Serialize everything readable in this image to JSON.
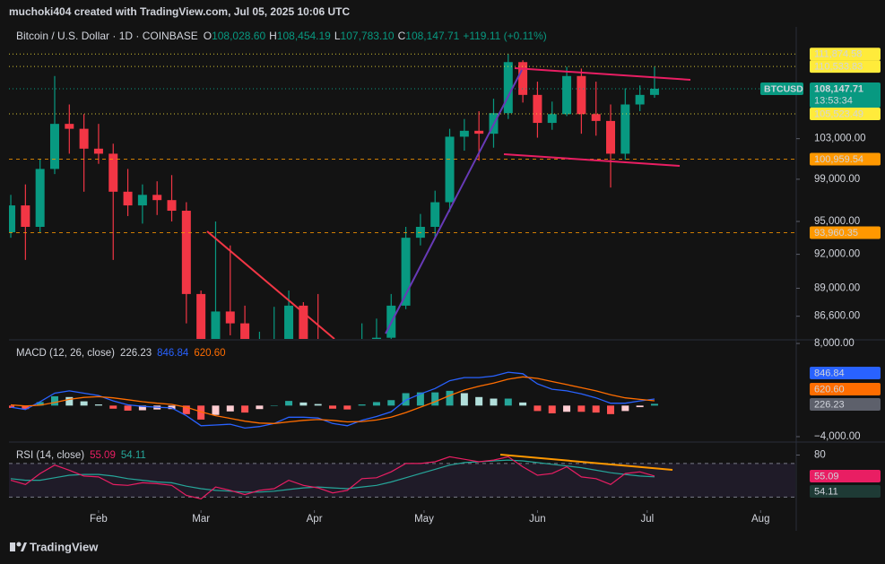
{
  "header": {
    "credit": "muchoki404 created with TradingView.com, Jul 05, 2025 10:06 UTC",
    "symbol": "Bitcoin / U.S. Dollar · 1D · COINBASE",
    "ohlc": [
      [
        "O",
        "108,028.60"
      ],
      [
        "H",
        "108,454.19"
      ],
      [
        "L",
        "107,783.10"
      ],
      [
        "C",
        "108,147.71"
      ]
    ],
    "change": "+119.11 (+0.11%)"
  },
  "chart_data": [
    {
      "type": "candlestick",
      "x": [
        7,
        11,
        15,
        19,
        23,
        27,
        31,
        35,
        39,
        43,
        47,
        51,
        55,
        59,
        63,
        67,
        71,
        75,
        79,
        83,
        87,
        91,
        95,
        99,
        103,
        107,
        111,
        115,
        119,
        123,
        127,
        131,
        135,
        139,
        143,
        147,
        151,
        155,
        159,
        163,
        167,
        171,
        175,
        179,
        183
      ],
      "open": [
        94000,
        96500,
        94500,
        100000,
        104500,
        104000,
        102000,
        101500,
        97800,
        96500,
        97500,
        97000,
        96000,
        88500,
        84500,
        87000,
        86000,
        83500,
        84000,
        84200,
        87500,
        84300,
        83000,
        78500,
        79500,
        84500,
        84800,
        87500,
        93500,
        94500,
        96800,
        103200,
        103800,
        103500,
        105600,
        111000,
        107500,
        104600,
        105500,
        109500,
        105500,
        104800,
        101500,
        106500,
        107500
      ],
      "high": [
        97500,
        98500,
        101000,
        109500,
        106500,
        105500,
        104500,
        102500,
        100000,
        98500,
        98800,
        99400,
        96800,
        88800,
        95000,
        92800,
        87500,
        85300,
        87400,
        88800,
        87800,
        88500,
        84700,
        83500,
        86000,
        86400,
        88500,
        94500,
        95700,
        97900,
        104000,
        105000,
        105800,
        107100,
        111874,
        111200,
        108900,
        106800,
        110500,
        110300,
        108900,
        106500,
        108200,
        108500,
        110500
      ],
      "low": [
        93500,
        91500,
        94000,
        99500,
        101500,
        97800,
        100500,
        91500,
        95500,
        94800,
        95600,
        95000,
        86000,
        78200,
        82000,
        85000,
        76700,
        81000,
        82000,
        83700,
        81700,
        82000,
        77000,
        74500,
        79000,
        83100,
        84000,
        87200,
        92800,
        93500,
        95900,
        101800,
        100800,
        102100,
        105000,
        106700,
        103100,
        103900,
        105300,
        103500,
        103300,
        98200,
        100900,
        105800,
        107200
      ],
      "close": [
        96500,
        94500,
        100000,
        104500,
        104000,
        102000,
        101500,
        97800,
        96500,
        97500,
        97000,
        96000,
        88500,
        84500,
        87000,
        86000,
        83500,
        84000,
        84200,
        87500,
        84300,
        83000,
        78500,
        79500,
        84500,
        84800,
        87500,
        93500,
        94500,
        96800,
        103200,
        103800,
        103500,
        105600,
        111000,
        107500,
        104600,
        105500,
        109500,
        105500,
        104800,
        101500,
        106500,
        107500,
        108150
      ],
      "up_color": "#089981",
      "down_color": "#f23645",
      "log": true,
      "ylim": [
        84700,
        112100
      ],
      "yticks": [
        {
          "value": 103000,
          "label": "103,000.00"
        },
        {
          "value": 99000,
          "label": "99,000.00"
        },
        {
          "value": 95000,
          "label": "95,000.00"
        },
        {
          "value": 92000,
          "label": "92,000.00"
        },
        {
          "value": 89000,
          "label": "89,000.00"
        },
        {
          "value": 86600,
          "label": "86,600.00"
        }
      ],
      "xlim": [
        6.5,
        221.5
      ],
      "xticks": [
        {
          "value": 31,
          "label": "Feb"
        },
        {
          "value": 59,
          "label": "Mar"
        },
        {
          "value": 90,
          "label": "Apr"
        },
        {
          "value": 120,
          "label": "May"
        },
        {
          "value": 151,
          "label": "Jun"
        },
        {
          "value": 181,
          "label": "Jul"
        },
        {
          "value": 212,
          "label": "Aug"
        }
      ],
      "levels": [
        {
          "value": 111874.58,
          "label": "111,874.58",
          "color": "#ffeb3b",
          "style": "dotted"
        },
        {
          "value": 110533.83,
          "label": "110,533.83",
          "color": "#ffeb3b",
          "style": "dotted"
        },
        {
          "value": 105523.49,
          "label": "105,523.49",
          "color": "#ffeb3b",
          "style": "dotted"
        },
        {
          "value": 100959.54,
          "label": "100,959.54",
          "color": "#ff9800",
          "style": "dashed"
        },
        {
          "value": 93960.35,
          "label": "93,960.35",
          "color": "#ff9800",
          "style": "dashed"
        }
      ],
      "last": {
        "name": "BTCUSD",
        "price": {
          "value": 108147.71,
          "label": "108,147.71"
        },
        "countdown": "13:53:34",
        "color": "#089981"
      }
    },
    {
      "type": "macd",
      "title": "MACD (12, 26, close)",
      "histogram": {
        "values": [
          -300,
          -450,
          450,
          1200,
          1100,
          550,
          150,
          -400,
          -650,
          -600,
          -500,
          -450,
          -1100,
          -1800,
          -1200,
          -750,
          -900,
          -450,
          0,
          600,
          400,
          200,
          -400,
          -500,
          150,
          450,
          700,
          1600,
          1700,
          1700,
          1900,
          1600,
          1100,
          900,
          900,
          400,
          -700,
          -1000,
          -800,
          -800,
          -900,
          -1100,
          -700,
          -200,
          226.23
        ],
        "colors": [
          "#26a69a",
          "#b2dfdb",
          "#ff5252",
          "#ffcdd2"
        ],
        "last": "226.23",
        "badge_color": "#5d606b"
      },
      "macd": {
        "values": [
          -200,
          -500,
          500,
          1600,
          1900,
          1600,
          1300,
          600,
          100,
          -100,
          -200,
          -300,
          -1300,
          -2600,
          -2500,
          -2400,
          -2900,
          -2700,
          -2300,
          -1500,
          -1500,
          -1600,
          -2300,
          -2600,
          -1900,
          -1400,
          -800,
          700,
          1500,
          2200,
          3200,
          3600,
          3600,
          3800,
          4300,
          4100,
          2800,
          2100,
          1900,
          1500,
          1000,
          300,
          300,
          600,
          846.84
        ],
        "color": "#2962ff",
        "last": "846.84"
      },
      "signal": {
        "values": [
          100,
          -50,
          50,
          400,
          800,
          1050,
          1150,
          1000,
          750,
          500,
          300,
          150,
          -200,
          -800,
          -1300,
          -1650,
          -2000,
          -2250,
          -2300,
          -2100,
          -1900,
          -1800,
          -1900,
          -2100,
          -2050,
          -1850,
          -1500,
          -900,
          -200,
          500,
          1300,
          2000,
          2500,
          2900,
          3400,
          3700,
          3500,
          3100,
          2700,
          2300,
          1900,
          1400,
          1000,
          800,
          620.6
        ],
        "color": "#ff6d00",
        "last": "620.60"
      },
      "ylim": [
        -4580,
        8350
      ],
      "yticks": [
        {
          "value": 8000,
          "label": "8,000.00"
        },
        {
          "value": -4000,
          "label": "−4,000.00"
        }
      ]
    },
    {
      "type": "rsi",
      "title": "RSI (14, close)",
      "rsi": {
        "values": [
          50,
          45,
          58,
          68,
          62,
          55,
          54,
          45,
          44,
          47,
          46,
          44,
          32,
          28,
          42,
          38,
          33,
          38,
          40,
          50,
          44,
          41,
          35,
          38,
          52,
          53,
          60,
          70,
          70,
          72,
          78,
          75,
          72,
          74,
          78,
          66,
          56,
          58,
          66,
          54,
          52,
          45,
          58,
          60,
          55.09
        ],
        "color": "#e91e63",
        "last": "55.09"
      },
      "ma": {
        "values": [
          52,
          50,
          50,
          53,
          56,
          57,
          57,
          55,
          52,
          50,
          48,
          47,
          43,
          40,
          38,
          37,
          36,
          36,
          37,
          39,
          41,
          42,
          41,
          40,
          42,
          44,
          48,
          53,
          58,
          63,
          68,
          71,
          72,
          73,
          74,
          73,
          71,
          69,
          67,
          65,
          62,
          59,
          57,
          55,
          54.11
        ],
        "color": "#26a69a",
        "last": "54.11"
      },
      "band": [
        70,
        30
      ],
      "band_color": "#7e57c2",
      "ylim": [
        15.5,
        93.3
      ],
      "yticks": [
        80
      ]
    }
  ],
  "footer": "TradingView"
}
